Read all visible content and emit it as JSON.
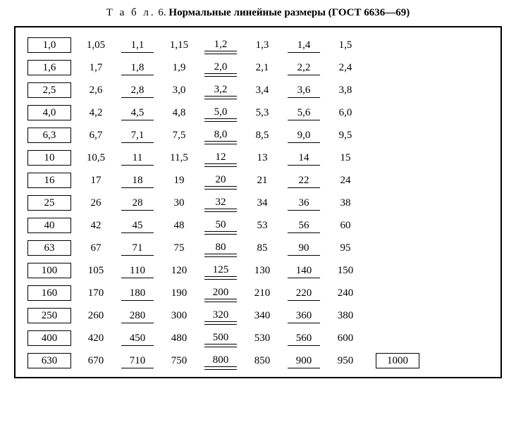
{
  "title_label": "Т а б л.",
  "title_num": "6.",
  "title_text": "Нормальные линейные размеры (ГОСТ 6636—69)",
  "rows": [
    {
      "c1": {
        "v": "1,0",
        "s": "boxed"
      },
      "c2": {
        "v": "1,05",
        "s": ""
      },
      "c3": {
        "v": "1,1",
        "s": "under"
      },
      "c4": {
        "v": "1,15",
        "s": ""
      },
      "c5": {
        "v": "1,2",
        "s": "dunder"
      },
      "c6": {
        "v": "1,3",
        "s": ""
      },
      "c7": {
        "v": "1,4",
        "s": "under"
      },
      "c8": {
        "v": "1,5",
        "s": ""
      },
      "c9": null
    },
    {
      "c1": {
        "v": "1,6",
        "s": "boxed"
      },
      "c2": {
        "v": "1,7",
        "s": ""
      },
      "c3": {
        "v": "1,8",
        "s": "under"
      },
      "c4": {
        "v": "1,9",
        "s": ""
      },
      "c5": {
        "v": "2,0",
        "s": "dunder"
      },
      "c6": {
        "v": "2,1",
        "s": ""
      },
      "c7": {
        "v": "2,2",
        "s": "under"
      },
      "c8": {
        "v": "2,4",
        "s": ""
      },
      "c9": null
    },
    {
      "c1": {
        "v": "2,5",
        "s": "boxed"
      },
      "c2": {
        "v": "2,6",
        "s": ""
      },
      "c3": {
        "v": "2,8",
        "s": "under"
      },
      "c4": {
        "v": "3,0",
        "s": ""
      },
      "c5": {
        "v": "3,2",
        "s": "dunder"
      },
      "c6": {
        "v": "3,4",
        "s": ""
      },
      "c7": {
        "v": "3,6",
        "s": "under"
      },
      "c8": {
        "v": "3,8",
        "s": ""
      },
      "c9": null
    },
    {
      "c1": {
        "v": "4,0",
        "s": "boxed"
      },
      "c2": {
        "v": "4,2",
        "s": ""
      },
      "c3": {
        "v": "4,5",
        "s": "under"
      },
      "c4": {
        "v": "4,8",
        "s": ""
      },
      "c5": {
        "v": "5,0",
        "s": "dunder"
      },
      "c6": {
        "v": "5,3",
        "s": ""
      },
      "c7": {
        "v": "5,6",
        "s": "under"
      },
      "c8": {
        "v": "6,0",
        "s": ""
      },
      "c9": null
    },
    {
      "c1": {
        "v": "6,3",
        "s": "boxed"
      },
      "c2": {
        "v": "6,7",
        "s": ""
      },
      "c3": {
        "v": "7,1",
        "s": "under"
      },
      "c4": {
        "v": "7,5",
        "s": ""
      },
      "c5": {
        "v": "8,0",
        "s": "dunder"
      },
      "c6": {
        "v": "8,5",
        "s": ""
      },
      "c7": {
        "v": "9,0",
        "s": "under"
      },
      "c8": {
        "v": "9,5",
        "s": ""
      },
      "c9": null
    },
    {
      "c1": {
        "v": "10",
        "s": "boxed"
      },
      "c2": {
        "v": "10,5",
        "s": ""
      },
      "c3": {
        "v": "11",
        "s": "under"
      },
      "c4": {
        "v": "11,5",
        "s": ""
      },
      "c5": {
        "v": "12",
        "s": "dunder"
      },
      "c6": {
        "v": "13",
        "s": ""
      },
      "c7": {
        "v": "14",
        "s": "under"
      },
      "c8": {
        "v": "15",
        "s": ""
      },
      "c9": null
    },
    {
      "c1": {
        "v": "16",
        "s": "boxed"
      },
      "c2": {
        "v": "17",
        "s": ""
      },
      "c3": {
        "v": "18",
        "s": "under"
      },
      "c4": {
        "v": "19",
        "s": ""
      },
      "c5": {
        "v": "20",
        "s": "dunder"
      },
      "c6": {
        "v": "21",
        "s": ""
      },
      "c7": {
        "v": "22",
        "s": "under"
      },
      "c8": {
        "v": "24",
        "s": ""
      },
      "c9": null
    },
    {
      "c1": {
        "v": "25",
        "s": "boxed"
      },
      "c2": {
        "v": "26",
        "s": ""
      },
      "c3": {
        "v": "28",
        "s": "under"
      },
      "c4": {
        "v": "30",
        "s": ""
      },
      "c5": {
        "v": "32",
        "s": "dunder"
      },
      "c6": {
        "v": "34",
        "s": ""
      },
      "c7": {
        "v": "36",
        "s": "under"
      },
      "c8": {
        "v": "38",
        "s": ""
      },
      "c9": null
    },
    {
      "c1": {
        "v": "40",
        "s": "boxed"
      },
      "c2": {
        "v": "42",
        "s": ""
      },
      "c3": {
        "v": "45",
        "s": "under"
      },
      "c4": {
        "v": "48",
        "s": ""
      },
      "c5": {
        "v": "50",
        "s": "dunder"
      },
      "c6": {
        "v": "53",
        "s": ""
      },
      "c7": {
        "v": "56",
        "s": "under"
      },
      "c8": {
        "v": "60",
        "s": ""
      },
      "c9": null
    },
    {
      "c1": {
        "v": "63",
        "s": "boxed"
      },
      "c2": {
        "v": "67",
        "s": ""
      },
      "c3": {
        "v": "71",
        "s": "under"
      },
      "c4": {
        "v": "75",
        "s": ""
      },
      "c5": {
        "v": "80",
        "s": "dunder"
      },
      "c6": {
        "v": "85",
        "s": ""
      },
      "c7": {
        "v": "90",
        "s": "under"
      },
      "c8": {
        "v": "95",
        "s": ""
      },
      "c9": null
    },
    {
      "c1": {
        "v": "100",
        "s": "boxed"
      },
      "c2": {
        "v": "105",
        "s": ""
      },
      "c3": {
        "v": "110",
        "s": "under"
      },
      "c4": {
        "v": "120",
        "s": ""
      },
      "c5": {
        "v": "125",
        "s": "dunder"
      },
      "c6": {
        "v": "130",
        "s": ""
      },
      "c7": {
        "v": "140",
        "s": "under"
      },
      "c8": {
        "v": "150",
        "s": ""
      },
      "c9": null
    },
    {
      "c1": {
        "v": "160",
        "s": "boxed"
      },
      "c2": {
        "v": "170",
        "s": ""
      },
      "c3": {
        "v": "180",
        "s": "under"
      },
      "c4": {
        "v": "190",
        "s": ""
      },
      "c5": {
        "v": "200",
        "s": "dunder"
      },
      "c6": {
        "v": "210",
        "s": ""
      },
      "c7": {
        "v": "220",
        "s": "under"
      },
      "c8": {
        "v": "240",
        "s": ""
      },
      "c9": null
    },
    {
      "c1": {
        "v": "250",
        "s": "boxed"
      },
      "c2": {
        "v": "260",
        "s": ""
      },
      "c3": {
        "v": "280",
        "s": "under"
      },
      "c4": {
        "v": "300",
        "s": ""
      },
      "c5": {
        "v": "320",
        "s": "dunder"
      },
      "c6": {
        "v": "340",
        "s": ""
      },
      "c7": {
        "v": "360",
        "s": "under"
      },
      "c8": {
        "v": "380",
        "s": ""
      },
      "c9": null
    },
    {
      "c1": {
        "v": "400",
        "s": "boxed"
      },
      "c2": {
        "v": "420",
        "s": ""
      },
      "c3": {
        "v": "450",
        "s": "under"
      },
      "c4": {
        "v": "480",
        "s": ""
      },
      "c5": {
        "v": "500",
        "s": "dunder"
      },
      "c6": {
        "v": "530",
        "s": ""
      },
      "c7": {
        "v": "560",
        "s": "under"
      },
      "c8": {
        "v": "600",
        "s": ""
      },
      "c9": null
    },
    {
      "c1": {
        "v": "630",
        "s": "boxed"
      },
      "c2": {
        "v": "670",
        "s": ""
      },
      "c3": {
        "v": "710",
        "s": "under"
      },
      "c4": {
        "v": "750",
        "s": ""
      },
      "c5": {
        "v": "800",
        "s": "dunder"
      },
      "c6": {
        "v": "850",
        "s": ""
      },
      "c7": {
        "v": "900",
        "s": "under"
      },
      "c8": {
        "v": "950",
        "s": ""
      },
      "c9": {
        "v": "1000",
        "s": "boxed"
      }
    }
  ]
}
